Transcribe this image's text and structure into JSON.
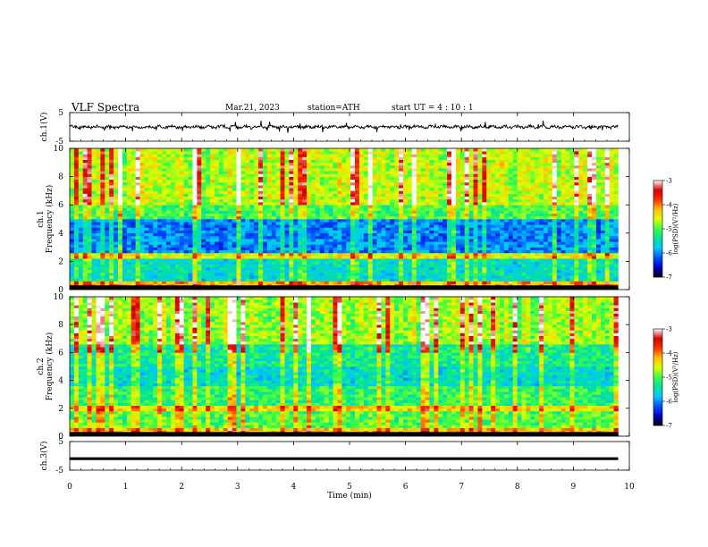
{
  "header": {
    "title": "VLF  Spectra",
    "date": "Mar.21, 2023",
    "station": "station=ATH",
    "start": "start  UT  =   4  : 10 : 1"
  },
  "chart_data": [
    {
      "type": "line",
      "panel": "ch1-waveform",
      "ylabel": "ch.1(V)",
      "ylim": [
        -5,
        5
      ],
      "yticks": [
        "5",
        "-5"
      ],
      "x_range": [
        0,
        9.8
      ],
      "series_level": 0.0
    },
    {
      "type": "heatmap",
      "panel": "ch1-spectrogram",
      "ylabel": "ch.1\nFrequency (kHz)",
      "ylabel_lines": [
        "ch.1",
        "Frequency (kHz)"
      ],
      "ylim": [
        0,
        10
      ],
      "yticks": [
        "0",
        "2",
        "4",
        "6",
        "8",
        "10"
      ],
      "x_range": [
        0,
        9.8
      ],
      "colorbar": {
        "label": "log(PSD)(V²/Hz)",
        "range": [
          -7,
          -3
        ],
        "ticks": [
          "-3",
          "-4",
          "-5",
          "-6",
          "-7"
        ]
      }
    },
    {
      "type": "heatmap",
      "panel": "ch2-spectrogram",
      "ylabel": "ch.2\nFrequency (kHz)",
      "ylabel_lines": [
        "ch.2",
        "Frequency (kHz)"
      ],
      "ylim": [
        0,
        10
      ],
      "yticks": [
        "0",
        "2",
        "4",
        "6",
        "8",
        "10"
      ],
      "x_range": [
        0,
        9.8
      ],
      "colorbar": {
        "label": "log(PSD)(V²/Hz)",
        "range": [
          -7,
          -3
        ],
        "ticks": [
          "-3",
          "-4",
          "-5",
          "-6",
          "-7"
        ]
      }
    },
    {
      "type": "line",
      "panel": "ch3-waveform",
      "ylabel": "ch.3(V)",
      "ylim": [
        -5,
        5
      ],
      "yticks": [
        "5",
        "-5"
      ],
      "x_range": [
        0,
        9.8
      ],
      "series_level": -1.0
    }
  ],
  "xaxis": {
    "label": "Time  (min)",
    "xlim": [
      0,
      10
    ],
    "ticks": [
      "0",
      "1",
      "2",
      "3",
      "4",
      "5",
      "6",
      "7",
      "8",
      "9",
      "10"
    ]
  },
  "colors": {
    "trace": "#000000",
    "colormap": [
      "#000000",
      "#0000c8",
      "#0050ff",
      "#00c8ff",
      "#00e0a0",
      "#40ff40",
      "#e0ff00",
      "#ffc000",
      "#ff3000",
      "#d00000",
      "#ffffff"
    ]
  }
}
